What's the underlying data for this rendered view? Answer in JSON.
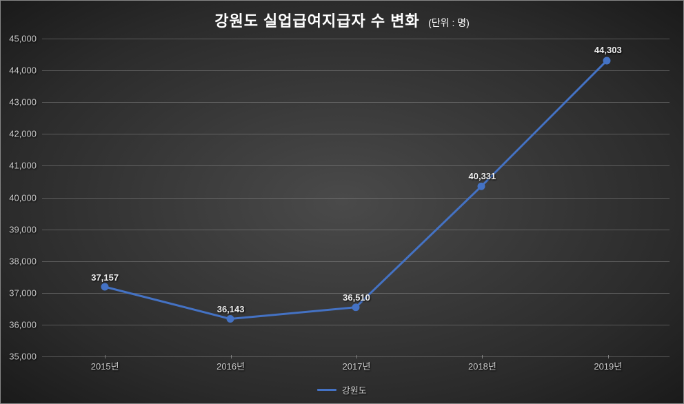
{
  "chart": {
    "type": "line",
    "title": "강원도 실업급여지급자 수 변화",
    "unit_label": "(단위 : 명)",
    "background_gradient_center": "#4a4a4a",
    "background_gradient_edge": "#1a1a1a",
    "text_color": "#cccccc",
    "title_color": "#ffffff",
    "grid_color": "rgba(180,180,180,0.35)",
    "series": {
      "name": "강원도",
      "color": "#4472c4",
      "line_width": 3,
      "marker_size": 5,
      "categories": [
        "2015년",
        "2016년",
        "2017년",
        "2018년",
        "2019년"
      ],
      "values": [
        37157,
        36143,
        36510,
        40331,
        44303
      ],
      "value_labels": [
        "37,157",
        "36,143",
        "36,510",
        "40,331",
        "44,303"
      ]
    },
    "y_axis": {
      "min": 35000,
      "max": 45000,
      "tick_step": 1000,
      "tick_labels": [
        "35,000",
        "36,000",
        "37,000",
        "38,000",
        "39,000",
        "40,000",
        "41,000",
        "42,000",
        "43,000",
        "44,000",
        "45,000"
      ],
      "label_fontsize": 13
    },
    "x_axis": {
      "label_fontsize": 13
    },
    "title_fontsize": 22,
    "unit_fontsize": 14,
    "legend_position": "bottom"
  }
}
